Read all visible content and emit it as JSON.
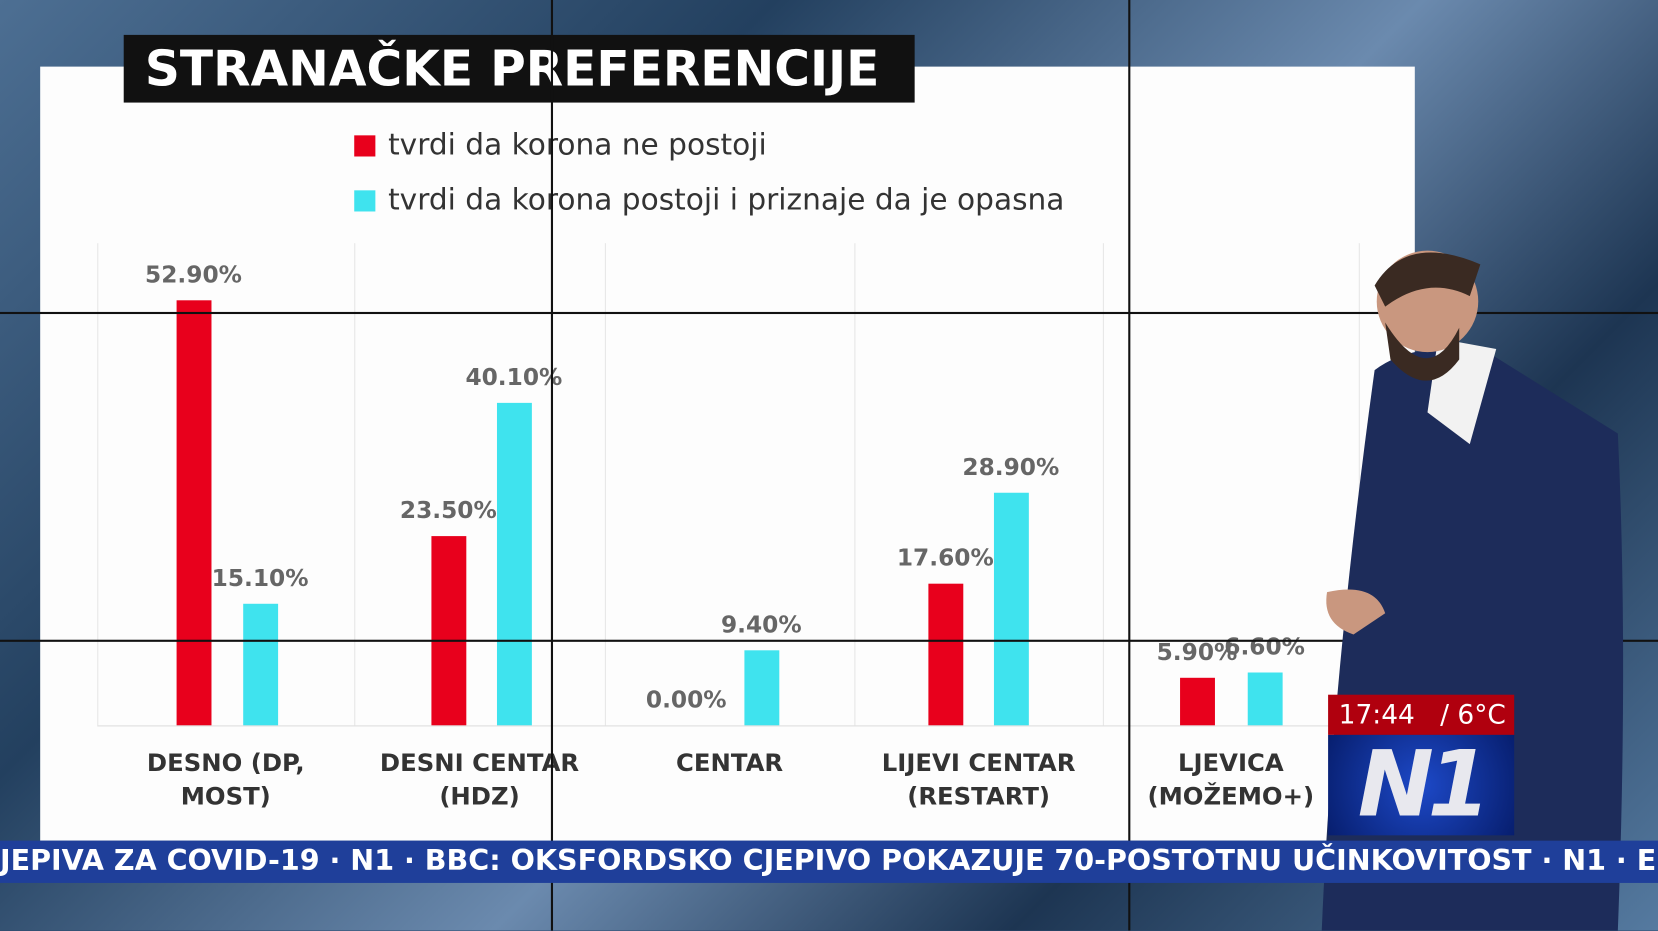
{
  "title": "STRANAČKE PREFERENCIJE",
  "colors": {
    "red": "#e8001c",
    "cyan": "#3fe3ee"
  },
  "chart_data": {
    "type": "bar",
    "title": "STRANAČKE PREFERENCIJE",
    "categories": [
      "DESNO (DP, MOST)",
      "DESNI CENTAR (HDZ)",
      "CENTAR",
      "LIJEVI CENTAR (RESTART)",
      "LJEVICA (MOŽEMO+)"
    ],
    "series": [
      {
        "name": "tvrdi da korona ne postoji",
        "color": "#e8001c",
        "values": [
          52.9,
          23.5,
          0.0,
          17.6,
          5.9
        ],
        "labels": [
          "52.90%",
          "23.50%",
          "0.00%",
          "17.60%",
          "5.90%"
        ]
      },
      {
        "name": "tvrdi da korona postoji i priznaje da je opasna",
        "color": "#3fe3ee",
        "values": [
          15.1,
          40.1,
          9.4,
          28.9,
          6.6
        ],
        "labels": [
          "15.10%",
          "40.10%",
          "9.40%",
          "28.90%",
          "6.60%"
        ]
      }
    ],
    "ylim": [
      0,
      60
    ],
    "legend": "top",
    "grid": false
  },
  "overlay": {
    "time": "17:44",
    "temp": "/ 6°C",
    "logo": "N1",
    "ticker": "JEPIVA ZA COVID-19 · N1 · BBC: OKSFORDSKO CJEPIVO POKAZUJE 70-POSTOTNU UČINKOVITOST · N1 · E"
  }
}
